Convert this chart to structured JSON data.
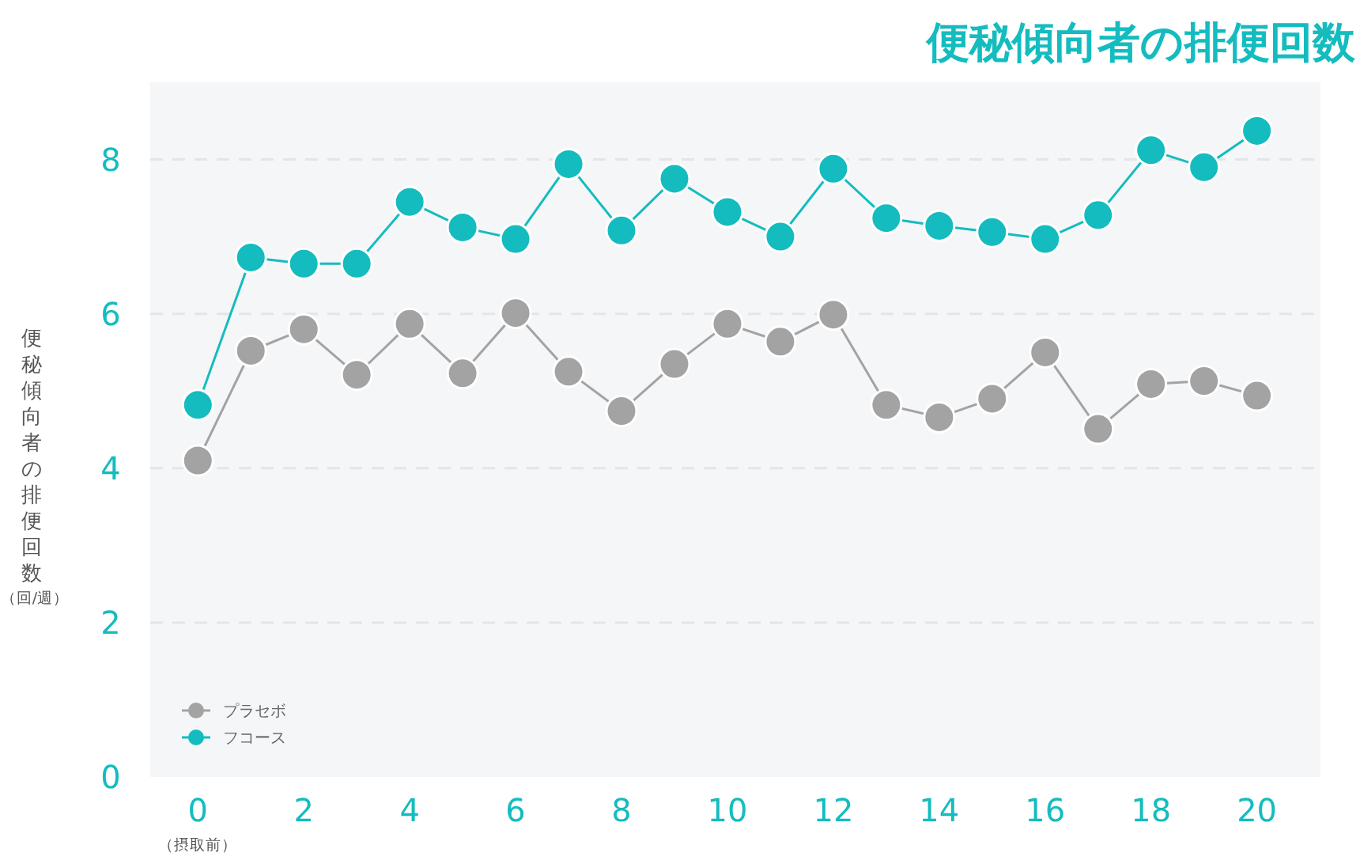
{
  "chart_data": {
    "type": "line",
    "title": "便秘傾向者の排便回数",
    "ylabel": "便秘傾向者の排便回数",
    "annotations": [
      "（回/週）",
      "（摂取前）"
    ],
    "x": [
      0,
      1,
      2,
      3,
      4,
      5,
      6,
      7,
      8,
      9,
      10,
      11,
      12,
      13,
      14,
      15,
      16,
      17,
      18,
      19,
      20
    ],
    "series": [
      {
        "name": "プラセボ",
        "color": "#a3a3a3",
        "values": [
          4.1,
          5.52,
          5.8,
          5.21,
          5.87,
          5.23,
          6.01,
          5.25,
          4.74,
          5.35,
          5.87,
          5.64,
          5.99,
          4.82,
          4.66,
          4.9,
          5.5,
          4.51,
          5.09,
          5.13,
          4.94
        ]
      },
      {
        "name": "フコース",
        "color": "#14bcbf",
        "values": [
          4.82,
          6.73,
          6.65,
          6.65,
          7.45,
          7.12,
          6.97,
          7.94,
          7.08,
          7.75,
          7.32,
          7.0,
          7.88,
          7.24,
          7.14,
          7.06,
          6.97,
          7.28,
          8.12,
          7.9,
          8.37
        ]
      }
    ],
    "xlim": [
      -0.9,
      21.2
    ],
    "ylim": [
      0,
      9
    ],
    "xticks": [
      0,
      2,
      4,
      6,
      8,
      10,
      12,
      14,
      16,
      18,
      20
    ],
    "yticks": [
      0,
      2,
      4,
      6,
      8
    ],
    "grid": "y",
    "legend": "bottom left",
    "marker": "circle",
    "line_style": "solid"
  }
}
